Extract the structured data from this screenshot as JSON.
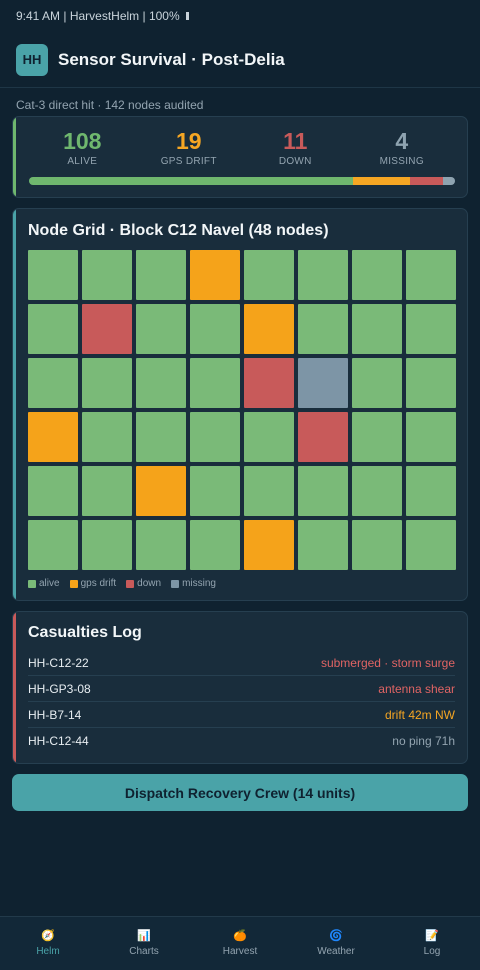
{
  "status_bar": {
    "text": "9:41 AM | HarvestHelm | 100%",
    "icons": [
      "battery-icon"
    ]
  },
  "header": {
    "logo_text": "HH",
    "title": "Sensor Survival · Post-Delia"
  },
  "subtitle": "Cat-3 direct hit · 142 nodes audited",
  "summary": {
    "stats": [
      {
        "value": "108",
        "label": "ALIVE",
        "color": "#6fb76e"
      },
      {
        "value": "19",
        "label": "GPS DRIFT",
        "color": "#f5a623"
      },
      {
        "value": "11",
        "label": "DOWN",
        "color": "#c85a5a"
      },
      {
        "value": "4",
        "label": "MISSING",
        "color": "#8ea3b0"
      }
    ],
    "bar": [
      {
        "key": "alive",
        "count": 108,
        "color": "#6fb76e"
      },
      {
        "key": "gps_drift",
        "count": 19,
        "color": "#f5a623"
      },
      {
        "key": "down",
        "count": 11,
        "color": "#c85a5a"
      },
      {
        "key": "missing",
        "count": 4,
        "color": "#8ea3b0"
      }
    ],
    "total": 142
  },
  "node_grid": {
    "title": "Node Grid · Block C12 Navel (48 nodes)",
    "rows": [
      [
        "alive",
        "alive",
        "alive",
        "gps_drift",
        "alive",
        "alive",
        "alive",
        "alive"
      ],
      [
        "alive",
        "down",
        "alive",
        "alive",
        "gps_drift",
        "alive",
        "alive",
        "alive"
      ],
      [
        "alive",
        "alive",
        "alive",
        "alive",
        "down",
        "missing",
        "alive",
        "alive"
      ],
      [
        "gps_drift",
        "alive",
        "alive",
        "alive",
        "alive",
        "down",
        "alive",
        "alive"
      ],
      [
        "alive",
        "alive",
        "gps_drift",
        "alive",
        "alive",
        "alive",
        "alive",
        "alive"
      ],
      [
        "alive",
        "alive",
        "alive",
        "alive",
        "gps_drift",
        "alive",
        "alive",
        "alive"
      ]
    ],
    "status_colors": {
      "alive": "#7aba78",
      "gps_drift": "#f5a31a",
      "down": "#c85a5a",
      "missing": "#7d95a6"
    },
    "legend": [
      {
        "key": "alive",
        "label": "alive"
      },
      {
        "key": "gps_drift",
        "label": "gps drift"
      },
      {
        "key": "down",
        "label": "down"
      },
      {
        "key": "missing",
        "label": "missing"
      }
    ]
  },
  "casualties": {
    "title": "Casualties Log",
    "entries": [
      {
        "id": "HH-C12-22",
        "status": "submerged · storm surge",
        "color": "#e06464"
      },
      {
        "id": "HH-GP3-08",
        "status": "antenna shear",
        "color": "#e06464"
      },
      {
        "id": "HH-B7-14",
        "status": "drift 42m NW",
        "color": "#f5a623"
      },
      {
        "id": "HH-C12-44",
        "status": "no ping 71h",
        "color": "#93a4b0"
      }
    ]
  },
  "dispatch_label": "Dispatch Recovery Crew (14 units)",
  "nav": {
    "items": [
      {
        "label": "Helm",
        "icon": "🧭",
        "icon_name": "compass-icon",
        "active": true
      },
      {
        "label": "Charts",
        "icon": "📊",
        "icon_name": "bar-chart-icon",
        "active": false
      },
      {
        "label": "Harvest",
        "icon": "🍊",
        "icon_name": "orange-fruit-icon",
        "active": false
      },
      {
        "label": "Weather",
        "icon": "🌀",
        "icon_name": "cyclone-icon",
        "active": false
      },
      {
        "label": "Log",
        "icon": "📝",
        "icon_name": "memo-icon",
        "active": false
      }
    ]
  }
}
